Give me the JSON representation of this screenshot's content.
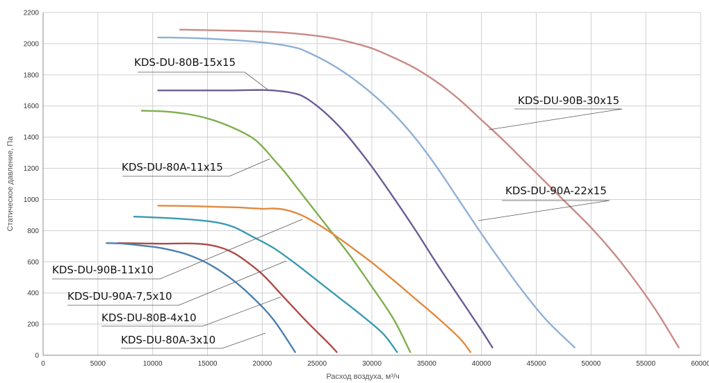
{
  "chart_data": {
    "type": "line",
    "title": "",
    "xlabel": "Расход воздуха, м³/ч",
    "ylabel": "Статическое давление, Па",
    "xlim": [
      0,
      60000
    ],
    "ylim": [
      0,
      2200
    ],
    "x_ticks": [
      "0",
      "5000",
      "10000",
      "15000",
      "20000",
      "25000",
      "30000",
      "35000",
      "40000",
      "45000",
      "50000",
      "55000",
      "60000"
    ],
    "y_ticks": [
      "0",
      "200",
      "400",
      "600",
      "800",
      "1000",
      "1200",
      "1400",
      "1600",
      "1800",
      "2000",
      "2200"
    ],
    "grid": true,
    "series": [
      {
        "name": "KDS-DU-90B-30x15",
        "color": "#c98a86",
        "points": [
          [
            12500,
            2090
          ],
          [
            16000,
            2085
          ],
          [
            20000,
            2078
          ],
          [
            23000,
            2065
          ],
          [
            26000,
            2040
          ],
          [
            28000,
            2010
          ],
          [
            30000,
            1970
          ],
          [
            32000,
            1910
          ],
          [
            34000,
            1840
          ],
          [
            36000,
            1750
          ],
          [
            38000,
            1640
          ],
          [
            40000,
            1510
          ],
          [
            42000,
            1380
          ],
          [
            44000,
            1240
          ],
          [
            46000,
            1100
          ],
          [
            48000,
            960
          ],
          [
            50000,
            820
          ],
          [
            52000,
            660
          ],
          [
            54000,
            480
          ],
          [
            56000,
            280
          ],
          [
            58000,
            50
          ]
        ]
      },
      {
        "name": "KDS-DU-90A-22x15",
        "color": "#8fb0d4",
        "points": [
          [
            10500,
            2040
          ],
          [
            14000,
            2035
          ],
          [
            18000,
            2020
          ],
          [
            21000,
            2000
          ],
          [
            23000,
            1975
          ],
          [
            24000,
            1950
          ],
          [
            26000,
            1880
          ],
          [
            28000,
            1790
          ],
          [
            30000,
            1680
          ],
          [
            32000,
            1550
          ],
          [
            34000,
            1390
          ],
          [
            36000,
            1200
          ],
          [
            38000,
            990
          ],
          [
            40000,
            780
          ],
          [
            42000,
            580
          ],
          [
            44000,
            390
          ],
          [
            46000,
            220
          ],
          [
            48500,
            50
          ]
        ]
      },
      {
        "name": "KDS-DU-80B-15x15",
        "color": "#6b5b95",
        "points": [
          [
            10500,
            1700
          ],
          [
            14000,
            1700
          ],
          [
            17000,
            1700
          ],
          [
            19000,
            1702
          ],
          [
            21000,
            1700
          ],
          [
            23000,
            1680
          ],
          [
            24000,
            1650
          ],
          [
            25000,
            1600
          ],
          [
            26000,
            1540
          ],
          [
            27000,
            1470
          ],
          [
            28000,
            1390
          ],
          [
            30000,
            1210
          ],
          [
            32000,
            1010
          ],
          [
            34000,
            800
          ],
          [
            36000,
            580
          ],
          [
            38000,
            370
          ],
          [
            40000,
            160
          ],
          [
            41000,
            50
          ]
        ]
      },
      {
        "name": "KDS-DU-80A-11x15",
        "color": "#7fae4d",
        "points": [
          [
            9000,
            1570
          ],
          [
            11000,
            1565
          ],
          [
            13000,
            1550
          ],
          [
            15000,
            1520
          ],
          [
            17000,
            1470
          ],
          [
            19000,
            1400
          ],
          [
            20000,
            1340
          ],
          [
            21000,
            1260
          ],
          [
            22000,
            1180
          ],
          [
            23000,
            1090
          ],
          [
            24000,
            1000
          ],
          [
            26000,
            820
          ],
          [
            28000,
            640
          ],
          [
            30000,
            440
          ],
          [
            32000,
            230
          ],
          [
            33500,
            20
          ]
        ]
      },
      {
        "name": "KDS-DU-90B-11x10",
        "color": "#e08a3e",
        "points": [
          [
            10500,
            960
          ],
          [
            13000,
            958
          ],
          [
            16000,
            952
          ],
          [
            18000,
            948
          ],
          [
            20000,
            940
          ],
          [
            21000,
            942
          ],
          [
            22000,
            935
          ],
          [
            23000,
            915
          ],
          [
            24000,
            885
          ],
          [
            26000,
            800
          ],
          [
            28000,
            700
          ],
          [
            30000,
            595
          ],
          [
            32000,
            480
          ],
          [
            34000,
            360
          ],
          [
            36000,
            240
          ],
          [
            38000,
            110
          ],
          [
            39000,
            20
          ]
        ]
      },
      {
        "name": "KDS-DU-90A-7,5x10",
        "color": "#3a9ab0",
        "points": [
          [
            8300,
            890
          ],
          [
            10000,
            885
          ],
          [
            12000,
            878
          ],
          [
            14000,
            868
          ],
          [
            16000,
            850
          ],
          [
            17500,
            820
          ],
          [
            19000,
            765
          ],
          [
            21000,
            690
          ],
          [
            23000,
            590
          ],
          [
            25000,
            480
          ],
          [
            27000,
            370
          ],
          [
            29000,
            260
          ],
          [
            31000,
            140
          ],
          [
            32300,
            20
          ]
        ]
      },
      {
        "name": "KDS-DU-80B-4x10",
        "color": "#b04a45",
        "points": [
          [
            6800,
            720
          ],
          [
            9000,
            718
          ],
          [
            11000,
            716
          ],
          [
            13000,
            718
          ],
          [
            14000,
            716
          ],
          [
            15000,
            710
          ],
          [
            16000,
            695
          ],
          [
            17000,
            670
          ],
          [
            18000,
            630
          ],
          [
            20000,
            520
          ],
          [
            22000,
            370
          ],
          [
            24000,
            220
          ],
          [
            26000,
            80
          ],
          [
            26800,
            20
          ]
        ]
      },
      {
        "name": "KDS-DU-80A-3x10",
        "color": "#4a7fb0",
        "points": [
          [
            5800,
            720
          ],
          [
            7500,
            715
          ],
          [
            9500,
            700
          ],
          [
            11000,
            685
          ],
          [
            13000,
            650
          ],
          [
            15000,
            590
          ],
          [
            17000,
            500
          ],
          [
            19000,
            380
          ],
          [
            21000,
            230
          ],
          [
            23000,
            20
          ]
        ]
      }
    ]
  }
}
